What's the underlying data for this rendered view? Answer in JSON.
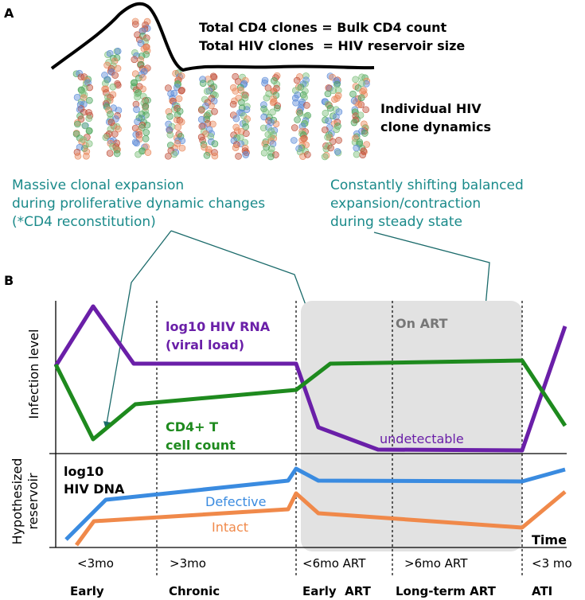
{
  "panel_a": {
    "label": "A",
    "summary_lines": [
      "Total CD4 clones = Bulk CD4 count",
      "Total HIV clones  = HIV reservoir size"
    ],
    "clone_label": [
      "Individual HIV",
      "clone dynamics"
    ]
  },
  "annotations": {
    "left": [
      "Massive clonal expansion",
      "during proliferative dynamic changes",
      "(*CD4 reconstitution)"
    ],
    "right": [
      "Constantly shifting balanced",
      "expansion/contraction",
      "during steady state"
    ]
  },
  "panel_b": {
    "label": "B",
    "y_axis_top": "Infection level",
    "y_axis_bottom": [
      "Hypothesized",
      "reservoir"
    ],
    "viral_load_label": [
      "log10 HIV RNA",
      "(viral load)"
    ],
    "on_art": "On ART",
    "cd4_label": [
      "CD4+ T",
      "cell count"
    ],
    "undetectable": "undetectable",
    "dna_label": [
      "log10",
      "HIV DNA"
    ],
    "defective": "Defective",
    "intact": "Intact",
    "x_axis": "Time"
  },
  "phases": [
    {
      "period": "<3mo",
      "name": "Early"
    },
    {
      "period": ">3mo",
      "name": "Chronic"
    },
    {
      "period": "<6mo ART",
      "name": "Early  ART"
    },
    {
      "period": ">6mo ART",
      "name": "Long-term ART"
    },
    {
      "period": "<3 mo",
      "name": "ATI"
    }
  ]
}
